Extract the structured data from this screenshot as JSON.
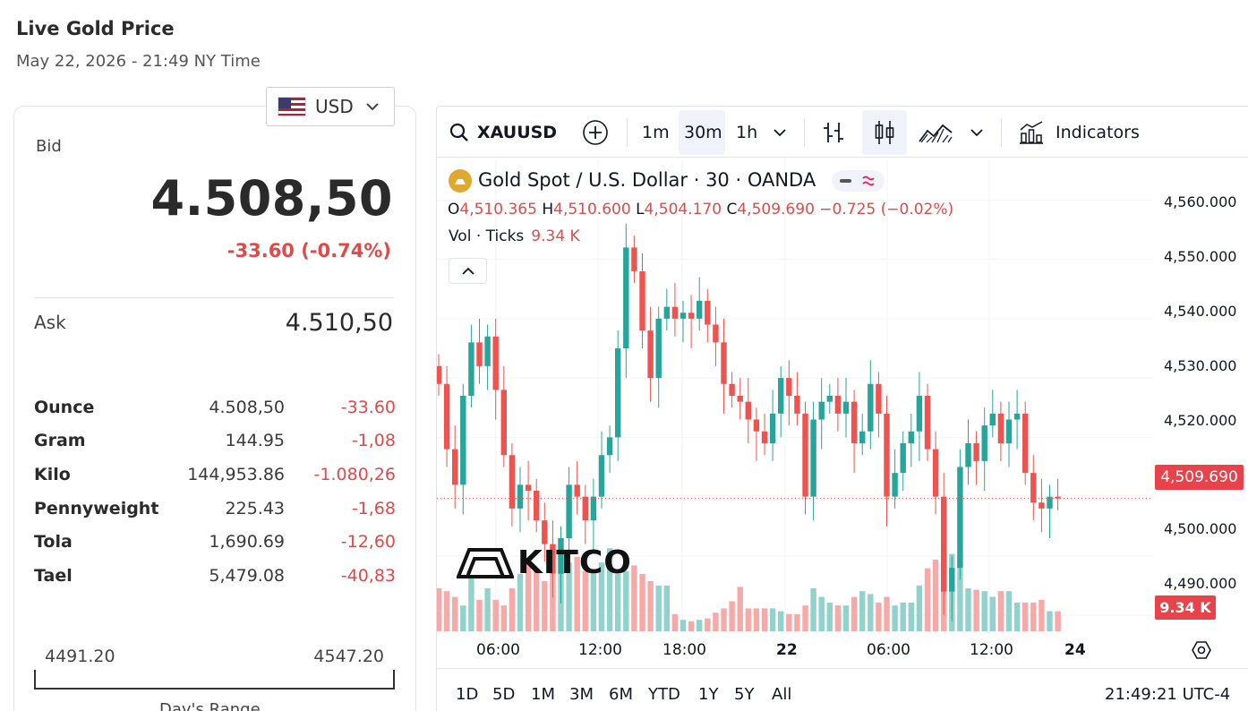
{
  "page": {
    "title": "Live Gold Price",
    "subtitle": "May 22, 2026 - 21:49 NY Time"
  },
  "currency": {
    "selected": "USD"
  },
  "quote": {
    "bid_label": "Bid",
    "bid": "4.508,50",
    "change": "-33.60 (-0.74%)",
    "ask_label": "Ask",
    "ask": "4.510,50"
  },
  "units": [
    {
      "name": "Ounce",
      "price": "4.508,50",
      "change": "-33.60"
    },
    {
      "name": "Gram",
      "price": "144.95",
      "change": "-1,08"
    },
    {
      "name": "Kilo",
      "price": "144,953.86",
      "change": "-1.080,26"
    },
    {
      "name": "Pennyweight",
      "price": "225.43",
      "change": "-1,68"
    },
    {
      "name": "Tola",
      "price": "1,690.69",
      "change": "-12,60"
    },
    {
      "name": "Tael",
      "price": "5,479.08",
      "change": "-40,83"
    }
  ],
  "days_range": {
    "low": "4491.20",
    "high": "4547.20",
    "caption": "Day's Range"
  },
  "toolbar": {
    "symbol": "XAUUSD",
    "intervals": [
      "1m",
      "30m",
      "1h"
    ],
    "active_interval": "30m",
    "indicators_label": "Indicators"
  },
  "legend": {
    "title": "Gold Spot / U.S. Dollar · 30 · OANDA",
    "o_label": "O",
    "o": "4,510.365",
    "h_label": "H",
    "h": "4,510.600",
    "l_label": "L",
    "l": "4,504.170",
    "c_label": "C",
    "c": "4,509.690",
    "change": "−0.725 (−0.02%)",
    "vol_label": "Vol · Ticks",
    "vol": "9.34 K"
  },
  "watermark": "KITCO",
  "last_price_badge": "4,509.690",
  "volume_badge": "9.34 K",
  "range_buttons": [
    "1D",
    "5D",
    "1M",
    "3M",
    "6M",
    "YTD",
    "1Y",
    "5Y",
    "All"
  ],
  "clock": "21:49:21 UTC-4",
  "colors": {
    "up": "#26a69a",
    "down": "#ef5350",
    "up_vol": "#92d2cc",
    "down_vol": "#f7a9a7"
  },
  "chart_data": {
    "type": "candlestick",
    "y_ticks": [
      "4,560.000",
      "4,550.000",
      "4,540.000",
      "4,530.000",
      "4,520.000",
      "4,500.000",
      "4,490.000"
    ],
    "y_tick_values": [
      4560,
      4550,
      4540,
      4530,
      4520,
      4500,
      4490
    ],
    "ylim": [
      4487,
      4567
    ],
    "x_ticks": [
      "06:00",
      "12:00",
      "18:00",
      "22",
      "06:00",
      "12:00",
      "24"
    ],
    "last_price": 4509.69,
    "closes": [
      4529,
      4518,
      4512,
      4527,
      4536,
      4532,
      4537,
      4528,
      4517,
      4508,
      4512,
      4511,
      4506,
      4502,
      4497,
      4503,
      4512,
      4510,
      4506,
      4510,
      4517,
      4520,
      4535,
      4552,
      4548,
      4538,
      4530,
      4540,
      4542,
      4540,
      4541,
      4540,
      4543,
      4539,
      4536,
      4529,
      4527,
      4526,
      4523,
      4521,
      4519,
      4524,
      4530,
      4527,
      4524,
      4510,
      4523,
      4526,
      4527,
      4524,
      4526,
      4519,
      4521,
      4529,
      4524,
      4510,
      4514,
      4519,
      4521,
      4527,
      4518,
      4510,
      4494,
      4498,
      4515,
      4519,
      4516,
      4522,
      4524,
      4519,
      4523,
      4524,
      4514,
      4509,
      4508,
      4510,
      4509.69
    ],
    "volumes": [
      30,
      28,
      24,
      18,
      38,
      22,
      30,
      22,
      18,
      30,
      40,
      50,
      44,
      35,
      40,
      42,
      48,
      52,
      42,
      40,
      48,
      58,
      40,
      42,
      46,
      40,
      35,
      32,
      32,
      12,
      8,
      7,
      8,
      9,
      13,
      16,
      21,
      31,
      16,
      16,
      16,
      16,
      14,
      12,
      12,
      18,
      30,
      24,
      20,
      18,
      18,
      24,
      28,
      26,
      20,
      24,
      18,
      20,
      20,
      32,
      44,
      50,
      55,
      54,
      52,
      30,
      29,
      28,
      24,
      28,
      28,
      20,
      20,
      20,
      22,
      14,
      14
    ]
  }
}
